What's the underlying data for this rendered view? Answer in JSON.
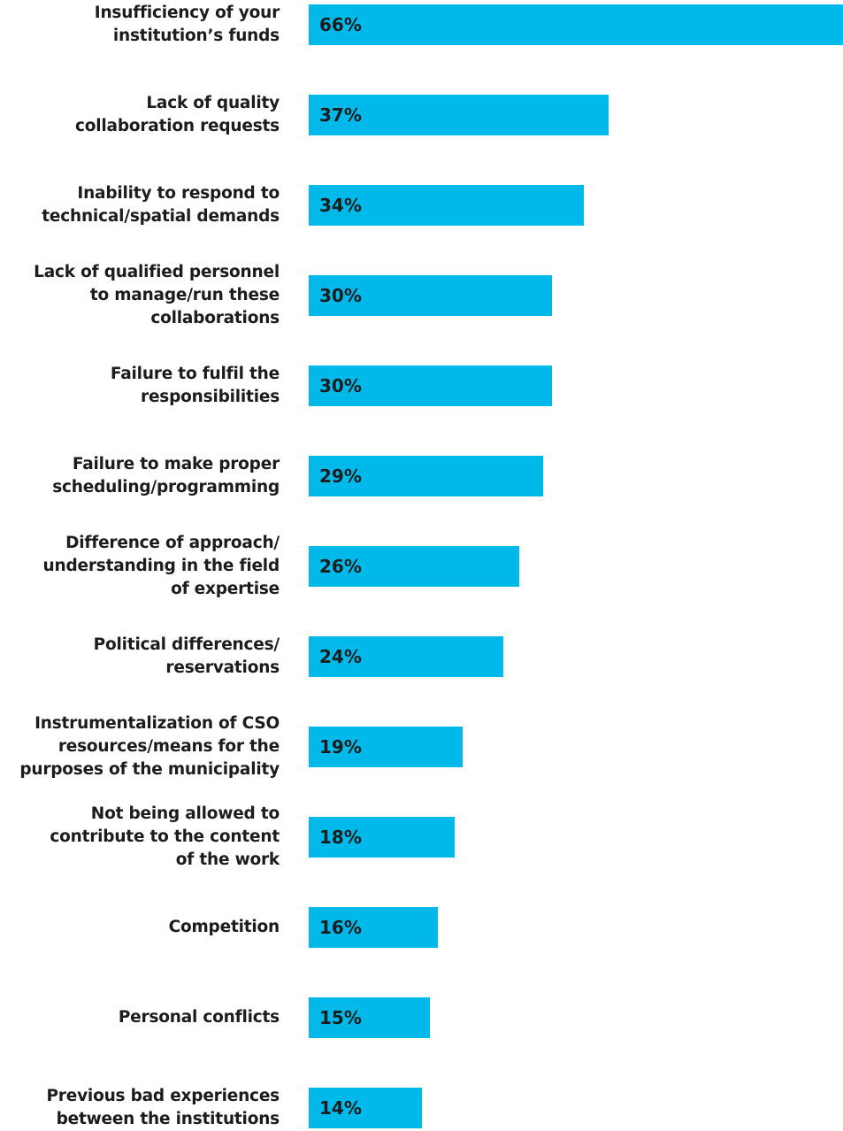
{
  "chart_data": {
    "type": "bar",
    "orientation": "horizontal",
    "categories": [
      "Insufficiency of your\ninstitution’s funds",
      "Lack of quality\ncollaboration requests",
      "Inability to respond to\ntechnical/spatial demands",
      "Lack of qualified personnel\nto manage/run these\ncollaborations",
      "Failure to fulfil the\nresponsibilities",
      "Failure to make proper\nscheduling/programming",
      "Difference of approach/\nunderstanding in the field\nof expertise",
      "Political differences/\nreservations",
      "Instrumentalization of CSO\nresources/means for the\npurposes of the municipality",
      "Not being allowed to\ncontribute to the content\nof the work",
      "Competition",
      "Personal conflicts",
      "Previous bad experiences\nbetween the institutions"
    ],
    "values": [
      66,
      37,
      34,
      30,
      30,
      29,
      26,
      24,
      19,
      18,
      16,
      15,
      14
    ],
    "value_labels": [
      "66%",
      "37%",
      "34%",
      "30%",
      "30%",
      "29%",
      "26%",
      "24%",
      "19%",
      "18%",
      "16%",
      "15%",
      "14%"
    ],
    "xlim": [
      0,
      66
    ],
    "grid": false,
    "legend": "none",
    "bar_color": "#00b9eb",
    "text_color": "#1c1c1c"
  }
}
